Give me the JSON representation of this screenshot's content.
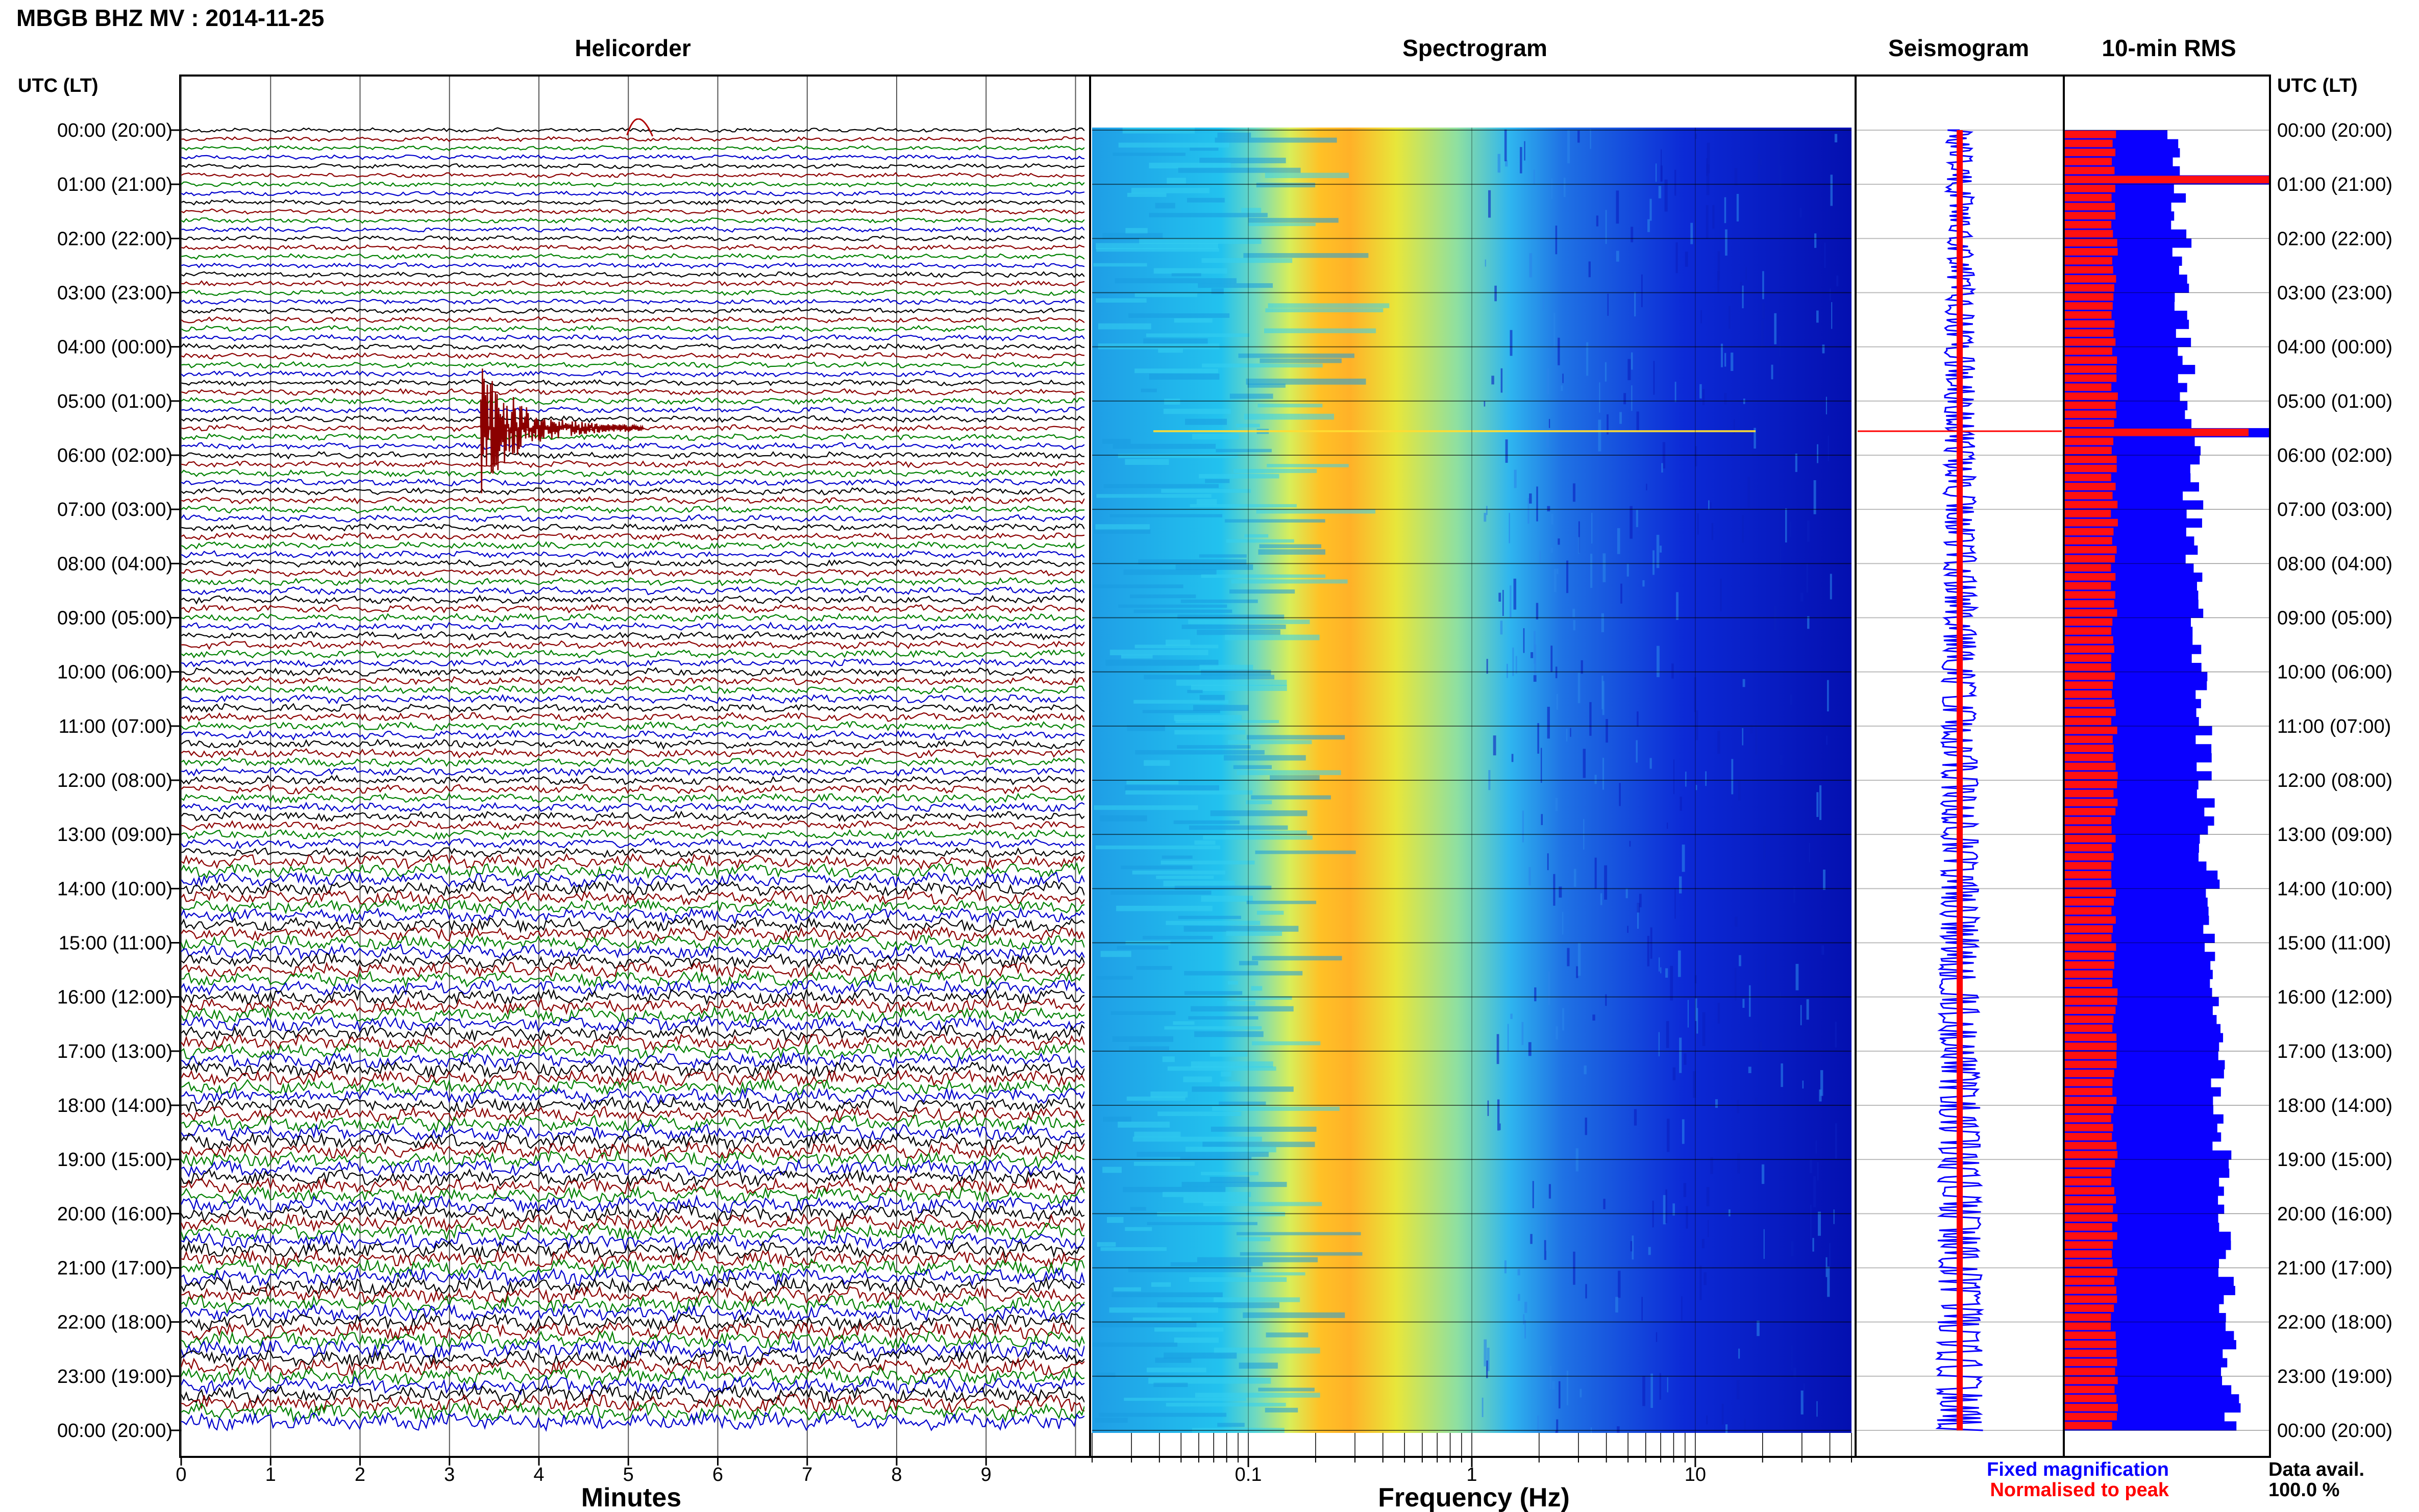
{
  "header": {
    "title": "MBGB BHZ MV : 2014-11-25",
    "utc_label_left": "UTC (LT)",
    "utc_label_right": "UTC (LT)"
  },
  "panels": {
    "helicorder": "Helicorder",
    "spectrogram": "Spectrogram",
    "seismogram": "Seismogram",
    "rms": "10-min RMS"
  },
  "axes": {
    "minutes_label": "Minutes",
    "frequency_label": "Frequency (Hz)",
    "minute_ticks": [
      "0",
      "1",
      "2",
      "3",
      "4",
      "5",
      "6",
      "7",
      "8",
      "9"
    ],
    "frequency_ticks": [
      "0.1",
      "1",
      "10"
    ]
  },
  "time_labels": [
    "00:00 (20:00)",
    "01:00 (21:00)",
    "02:00 (22:00)",
    "03:00 (23:00)",
    "04:00 (00:00)",
    "05:00 (01:00)",
    "06:00 (02:00)",
    "07:00 (03:00)",
    "08:00 (04:00)",
    "09:00 (05:00)",
    "10:00 (06:00)",
    "11:00 (07:00)",
    "12:00 (08:00)",
    "13:00 (09:00)",
    "14:00 (10:00)",
    "15:00 (11:00)",
    "16:00 (12:00)",
    "17:00 (13:00)",
    "18:00 (14:00)",
    "19:00 (15:00)",
    "20:00 (16:00)",
    "21:00 (17:00)",
    "22:00 (18:00)",
    "23:00 (19:00)",
    "00:00 (20:00)"
  ],
  "legend": {
    "fixed": "Fixed magnification",
    "normalised": "Normalised to peak",
    "fixed_color": "#0a00ff",
    "normalised_color": "#ff0000"
  },
  "data_avail": {
    "label": "Data avail.",
    "value": "100.0 %",
    "percent": 100.0
  },
  "colors": {
    "trace_cycle": [
      "#000000",
      "#8b0000",
      "#008000",
      "#0000cc"
    ],
    "spectrogram_low": "#0000a8",
    "spectrogram_high": "#ff3000"
  },
  "chart_data": [
    {
      "type": "helicorder",
      "title": "Helicorder",
      "xlabel": "Minutes",
      "x_range": [
        0,
        10
      ],
      "rows": 144,
      "row_minutes": 10,
      "events": [
        {
          "time_utc": "05:35",
          "minute": 3.6,
          "amplitude": "large"
        },
        {
          "time_utc": "00:00",
          "minute": 5.1,
          "amplitude": "small"
        }
      ]
    },
    {
      "type": "heatmap",
      "title": "Spectrogram",
      "xlabel": "Frequency (Hz)",
      "x_scale": "log",
      "x_range": [
        0.02,
        50
      ],
      "peak_band_hz": [
        0.15,
        0.4
      ]
    },
    {
      "type": "bar",
      "title": "10-min RMS",
      "series": [
        {
          "name": "Fixed magnification",
          "color": "#0a00ff"
        },
        {
          "name": "Normalised to peak",
          "color": "#ff0000"
        }
      ],
      "peaks_utc": [
        "00:50",
        "05:30"
      ]
    }
  ]
}
